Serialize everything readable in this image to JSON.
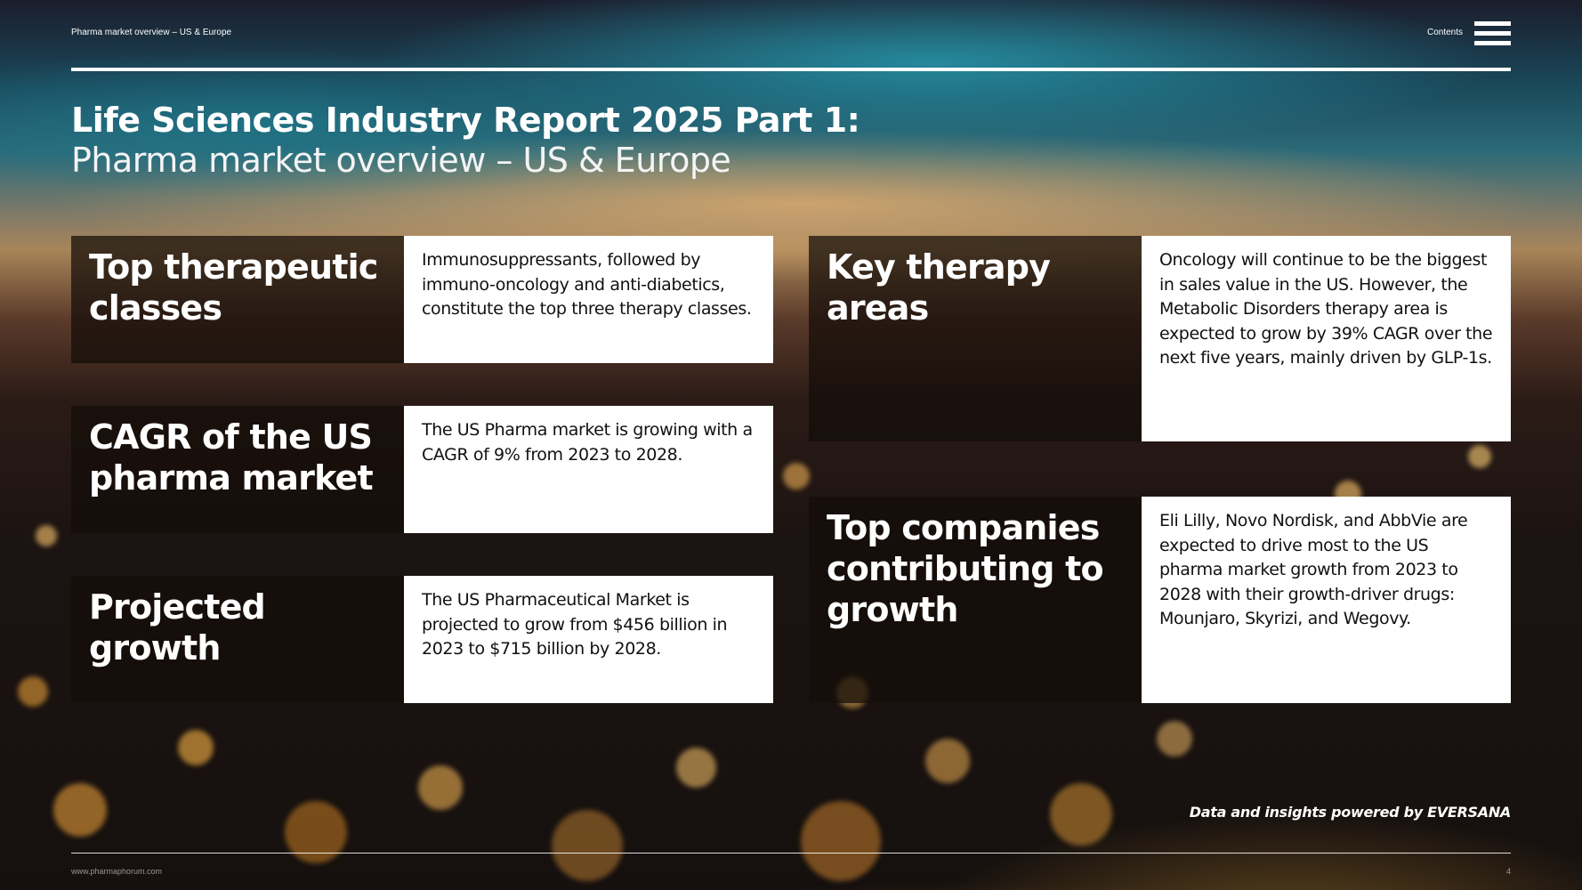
{
  "header": {
    "breadcrumb": "Pharma market overview – US & Europe",
    "contents_label": "Contents"
  },
  "title": {
    "bold": "Life Sciences Industry Report 2025 Part 1:",
    "subtitle": "Pharma market overview – US & Europe"
  },
  "cards": [
    {
      "label": "Top therapeutic classes",
      "text": "Immunosuppressants, followed by immuno-oncology and anti-diabetics, constitute the top three therapy classes."
    },
    {
      "label": "CAGR of the US pharma market",
      "text": "The US Pharma market is growing with a CAGR of 9% from 2023 to 2028."
    },
    {
      "label": "Projected growth",
      "text": "The US Pharmaceutical Market is projected to grow from $456 billion in 2023 to $715 billion by 2028."
    },
    {
      "label": "Key therapy areas",
      "text": "Oncology will continue to be the biggest in sales value in the US. However, the Metabolic Disorders therapy area is expected to grow by 39% CAGR over the next five years, mainly driven by GLP-1s."
    },
    {
      "label": "Top companies contributing to growth",
      "text": "Eli Lilly, Novo Nordisk, and AbbVie are expected to drive most to the US pharma market growth from 2023 to 2028 with their growth-driver drugs: Mounjaro, Skyrizi, and Wegovy."
    }
  ],
  "credit": "Data and insights powered by EVERSANA",
  "footer": {
    "url": "www.pharmaphorum.com",
    "page_number": "4"
  },
  "icons": {
    "menu": "hamburger-menu-icon"
  }
}
